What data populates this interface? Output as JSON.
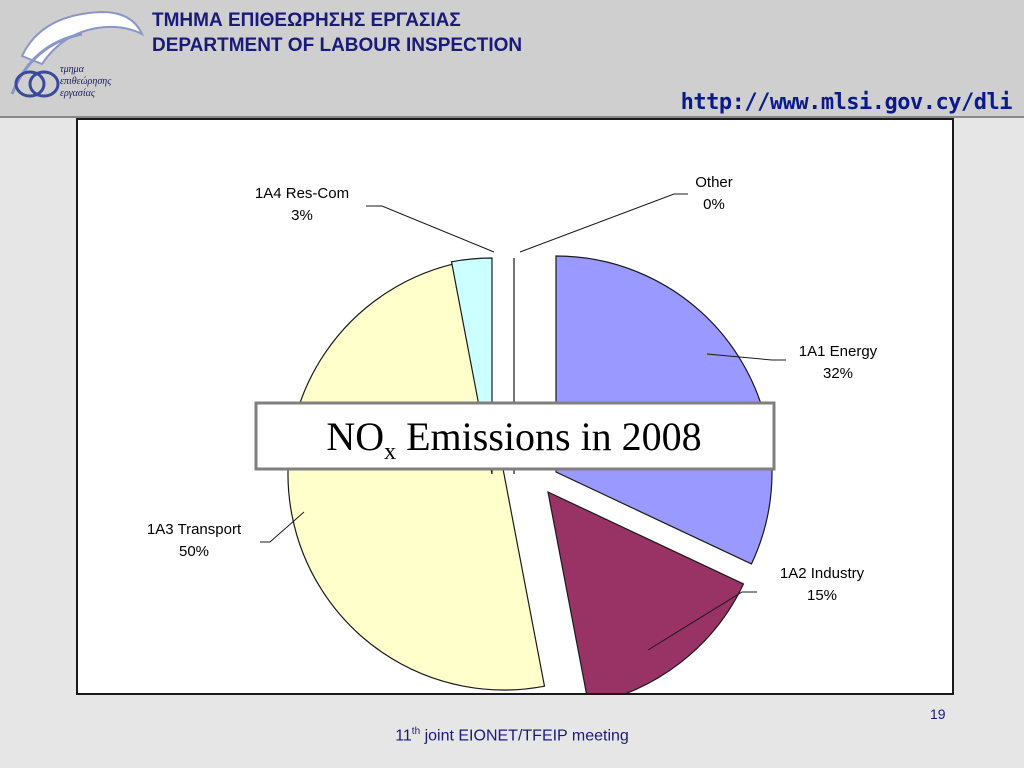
{
  "header": {
    "title_greek": "ΤΜΗΜΑ ΕΠΙΘΕΩΡΗΣΗΣ ΕΡΓΑΣΙΑΣ",
    "title_english": "DEPARTMENT OF LABOUR INSPECTION",
    "url": "http://www.mlsi.gov.cy/dli",
    "logo_text": [
      "τμημα",
      "επιθεώρησης",
      "εργασίας"
    ]
  },
  "chart_data": {
    "type": "pie",
    "title_main": "NO",
    "title_sub": "x",
    "title_rest": " Emissions in 2008",
    "slices": [
      {
        "label": "1A1 Energy",
        "percent_label": "32%",
        "value": 32,
        "color": "#9999ff"
      },
      {
        "label": "1A2 Industry",
        "percent_label": "15%",
        "value": 15,
        "color": "#993366"
      },
      {
        "label": "1A3 Transport",
        "percent_label": "50%",
        "value": 50,
        "color": "#ffffcc"
      },
      {
        "label": "1A4 Res-Com",
        "percent_label": "3%",
        "value": 3,
        "color": "#ccffff"
      },
      {
        "label": "Other",
        "percent_label": "0%",
        "value": 0,
        "color": "#ffffff"
      }
    ]
  },
  "footer": {
    "number": "11",
    "superscript": "th",
    "text": " joint EIONET/TFEIP meeting",
    "page_number": "19"
  }
}
